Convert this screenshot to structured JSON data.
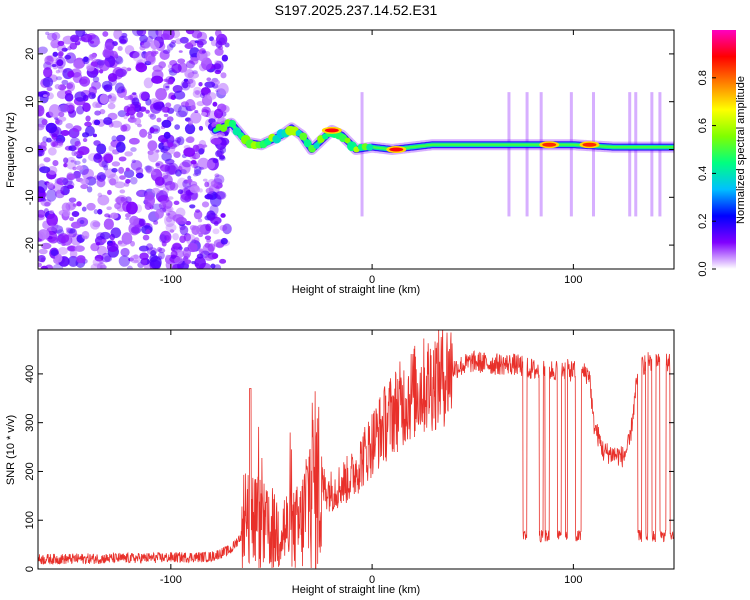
{
  "figure": {
    "title": "S197.2025.237.14.52.E31"
  },
  "chart_data": [
    {
      "type": "heatmap",
      "name": "spectrogram",
      "xlabel": "Height of straight line (km)",
      "ylabel": "Frequency (Hz)",
      "xlim": [
        -166,
        150
      ],
      "ylim": [
        -25,
        25
      ],
      "xticks": [
        -100,
        0,
        100
      ],
      "yticks": [
        -20,
        -10,
        0,
        10,
        20
      ],
      "colorbar": {
        "label": "Normalized spectral amplitude",
        "range": [
          0,
          1
        ],
        "ticks": [
          "0.0",
          "0.2",
          "0.4",
          "0.6",
          "0.8"
        ],
        "colors": [
          "#ffffff",
          "#8000ff",
          "#0000ff",
          "#00c0ff",
          "#00ff80",
          "#80ff00",
          "#ffff00",
          "#ff8000",
          "#ff0000",
          "#ff00c0"
        ]
      },
      "ridge": [
        {
          "x": -78,
          "y": 4
        },
        {
          "x": -70,
          "y": 5.5
        },
        {
          "x": -62,
          "y": 1.5
        },
        {
          "x": -55,
          "y": 1
        },
        {
          "x": -45,
          "y": 3
        },
        {
          "x": -40,
          "y": 4.5
        },
        {
          "x": -35,
          "y": 3
        },
        {
          "x": -30,
          "y": 0
        },
        {
          "x": -25,
          "y": 2
        },
        {
          "x": -20,
          "y": 4
        },
        {
          "x": -15,
          "y": 3
        },
        {
          "x": -8,
          "y": 0
        },
        {
          "x": 0,
          "y": 0.5
        },
        {
          "x": 10,
          "y": 0
        },
        {
          "x": 30,
          "y": 1
        },
        {
          "x": 60,
          "y": 1
        },
        {
          "x": 80,
          "y": 1
        },
        {
          "x": 100,
          "y": 1
        },
        {
          "x": 120,
          "y": 0.5
        },
        {
          "x": 150,
          "y": 0.5
        }
      ],
      "peaks": [
        {
          "x": -20,
          "y": 4,
          "amplitude": 1.0
        },
        {
          "x": 12,
          "y": 0,
          "amplitude": 1.0
        },
        {
          "x": 88,
          "y": 1,
          "amplitude": 0.95
        },
        {
          "x": 108,
          "y": 1,
          "amplitude": 0.95
        }
      ]
    },
    {
      "type": "line",
      "name": "snr",
      "xlabel": "Height of straight line (km)",
      "ylabel": "SNR (10 * v/v)",
      "xlim": [
        -166,
        150
      ],
      "ylim": [
        0,
        490
      ],
      "xticks": [
        -100,
        0,
        100
      ],
      "yticks": [
        0,
        100,
        200,
        300,
        400
      ],
      "color": "#e8302a",
      "series": [
        {
          "name": "SNR",
          "x": [
            -166,
            -120,
            -80,
            -70,
            -63,
            -60,
            -55,
            -50,
            -45,
            -40,
            -35,
            -30,
            -20,
            -10,
            0,
            10,
            20,
            30,
            40,
            50,
            60,
            70,
            75,
            78,
            85,
            95,
            100,
            108,
            110,
            115,
            120,
            125,
            128,
            132,
            135,
            140,
            145,
            150
          ],
          "y": [
            20,
            22,
            25,
            40,
            80,
            110,
            90,
            70,
            85,
            75,
            90,
            180,
            160,
            190,
            260,
            320,
            360,
            385,
            410,
            425,
            420,
            420,
            415,
            410,
            405,
            410,
            405,
            400,
            300,
            240,
            235,
            230,
            260,
            400,
            420,
            430,
            420,
            420
          ]
        }
      ]
    }
  ]
}
